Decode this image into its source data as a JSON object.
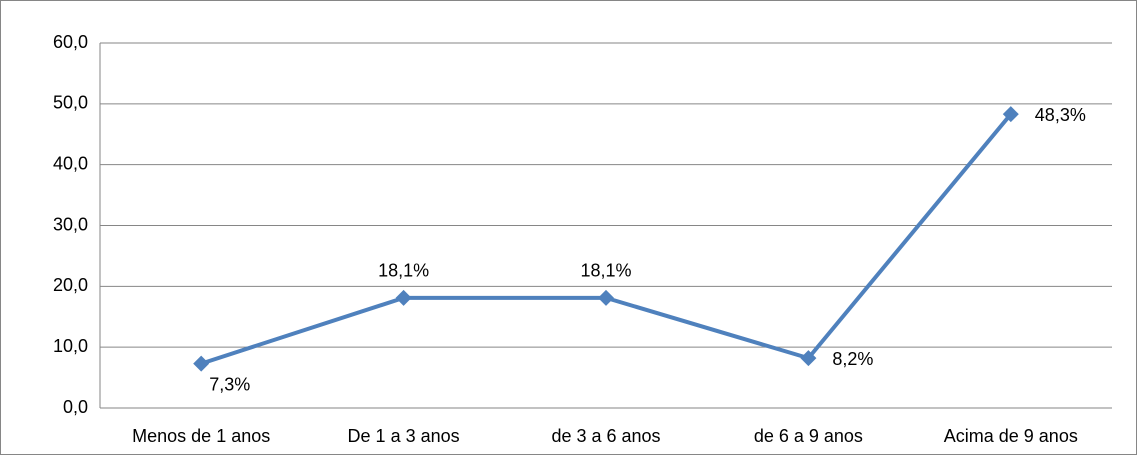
{
  "chart_data": {
    "type": "line",
    "categories": [
      "Menos de 1 anos",
      "De 1 a 3 anos",
      "de 3 a 6 anos",
      "de 6 a 9 anos",
      "Acima de 9 anos"
    ],
    "values": [
      7.3,
      18.1,
      18.1,
      8.2,
      48.3
    ],
    "value_labels": [
      "7,3%",
      "18,1%",
      "18,1%",
      "8,2%",
      "48,3%"
    ],
    "color": "#4f81bd",
    "ylim": [
      0,
      60
    ],
    "yticks": [
      {
        "value": 0,
        "label": "0,0"
      },
      {
        "value": 10,
        "label": "10,0"
      },
      {
        "value": 20,
        "label": "20,0"
      },
      {
        "value": 30,
        "label": "30,0"
      },
      {
        "value": 40,
        "label": "40,0"
      },
      {
        "value": 50,
        "label": "50,0"
      },
      {
        "value": 60,
        "label": "60,0"
      }
    ],
    "grid": true
  }
}
